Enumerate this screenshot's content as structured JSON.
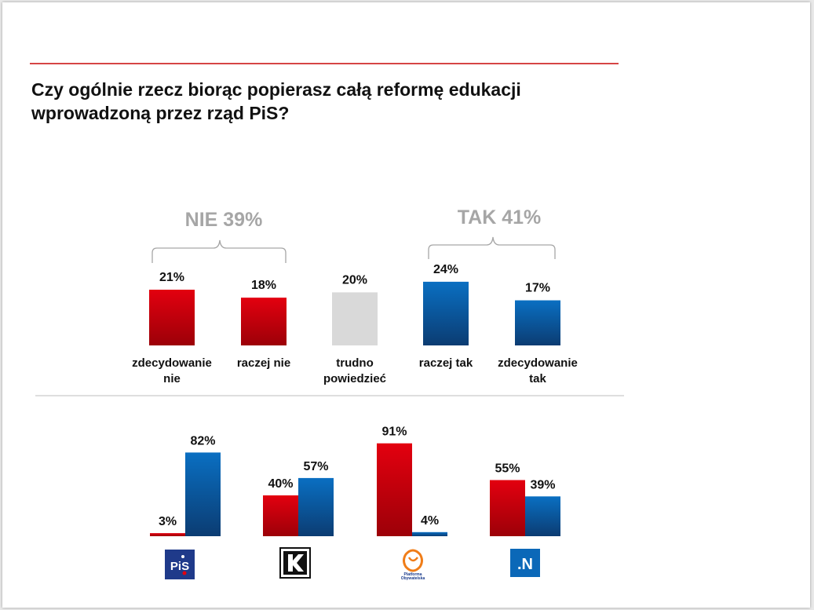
{
  "title": "Czy ogólnie rzecz biorąc popierasz całą reformę edukacji wprowadzoną przez rząd PiS?",
  "colors": {
    "red": "#e3000f",
    "red_dark": "#9c0008",
    "blue": "#0a6fc2",
    "blue_dark": "#0b3c72",
    "gray": "#d9d9d9",
    "rule": "#d64545"
  },
  "groups": [
    {
      "label": "NIE 39%"
    },
    {
      "label": "TAK 41%"
    }
  ],
  "chart_data": [
    {
      "type": "bar",
      "categories": [
        "zdecydowanie\nnie",
        "raczej nie",
        "trudno\npowiedzieć",
        "raczej tak",
        "zdecydowanie\ntak"
      ],
      "values": [
        21,
        18,
        20,
        24,
        17
      ],
      "value_labels": [
        "21%",
        "18%",
        "20%",
        "24%",
        "17%"
      ],
      "colors": [
        "red",
        "red",
        "gray",
        "blue",
        "blue"
      ],
      "ylim": [
        0,
        100
      ]
    },
    {
      "type": "bar",
      "categories": [
        "PiS",
        "Kukiz'15",
        "Platforma Obywatelska",
        "Nowoczesna"
      ],
      "series": [
        {
          "values": [
            3,
            40,
            91,
            55
          ],
          "value_labels": [
            "3%",
            "40%",
            "91%",
            "55%"
          ],
          "color": "red"
        },
        {
          "values": [
            82,
            57,
            4,
            39
          ],
          "value_labels": [
            "82%",
            "57%",
            "4%",
            "39%"
          ],
          "color": "blue"
        }
      ],
      "ylim": [
        0,
        100
      ]
    }
  ],
  "logos": [
    {
      "party": "PiS",
      "icon": "pis-logo",
      "text": "PiS"
    },
    {
      "party": "Kukiz'15",
      "icon": "kukiz-logo",
      "text": "K"
    },
    {
      "party": "Platforma Obywatelska",
      "icon": "po-logo",
      "text": "Platforma Obywatelska"
    },
    {
      "party": "Nowoczesna",
      "icon": "nowoczesna-logo",
      "text": ".N"
    }
  ]
}
